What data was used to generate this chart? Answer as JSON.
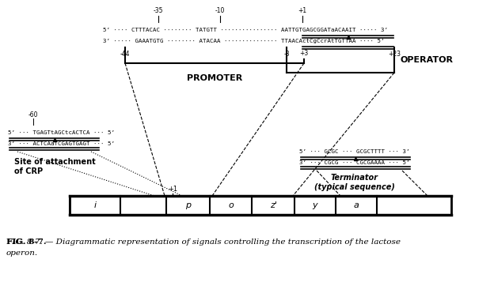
{
  "fig_width": 6.24,
  "fig_height": 3.71,
  "dpi": 100,
  "bg_color": "#ffffff",
  "caption_line1": "FIG. 8-7. — Diagrammatic representation of signals controlling the transcription of the lactose",
  "caption_line2": "operon.",
  "seq_top5": "5’ ···· CTTTACAC ········ TATGTT ················ AATTGTGAGCGGATaACAAIT ····· 3’",
  "seq_top3": "3’ ····· GAAATGTG ········ ATACAA ··············· TTAACActCgCcrAtTGTTAA ···· 5’",
  "crp5": "5’ ··· TGAGTtAGCtcACTCA ··· 5’",
  "crp3": "3’ ··· ACTCAaTCGAGTGAGT ··· 5’",
  "term5": "5’ ··· GCGC ··· GCGCTTTT ··· 3’",
  "term3": "3’ ··· CGCG ··· CGCGAAAA ··· 5’",
  "promoter_label": "PROMOTER",
  "operator_label": "OPERATOR",
  "crp_label1": "Site of attachment",
  "crp_label2": "of CRP",
  "term_label1": "Terminator",
  "term_label2": "(typical sequence)",
  "m35": "-35",
  "m10": "-10",
  "p1_top": "+1",
  "m44": "-44",
  "m3": "-3",
  "p3": "+3",
  "p23": "+23",
  "m60": "-60",
  "p1_gene": "+1"
}
